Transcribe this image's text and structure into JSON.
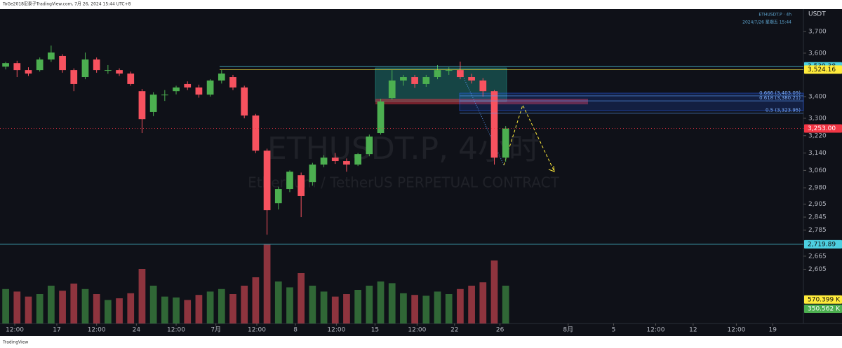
{
  "header": "ToGe2018宏泰子TradingView.com, 7月 26, 2024 15:44 UTC+8",
  "footer_logo": "TradingView",
  "chart_data": {
    "type": "candlestick",
    "title": "ETHUSDT.P, 4小时",
    "subtitle": "Ethereum / TetherUS PERPETUAL CONTRACT",
    "symbol_label": "ETHUSDT.P · 4h",
    "datetime": "2024/7/26 星期五 15:44",
    "axis_unit": "USDT",
    "up_color": "#4caf50",
    "down_color": "#f7525f",
    "x": [
      0.5,
      1.5,
      2.5,
      3.5,
      4.5,
      5.5,
      6.5,
      7.5,
      8.5,
      9.5,
      10.5,
      11.5,
      12.5,
      13.5,
      14.5,
      15.5,
      16.5,
      17.5,
      18.5,
      19.5,
      20.5,
      21.5,
      22.5,
      23.5,
      24.5,
      25.5,
      26.5,
      27.5,
      28.5,
      29.5,
      30.5,
      31.5,
      32.5,
      33.5,
      34.5,
      35.5,
      36.5,
      37.5,
      38.5,
      39.5,
      40.5,
      41.5,
      42.5,
      43.5,
      44.5
    ],
    "open": [
      3538,
      3554,
      3522,
      3522,
      3571,
      3587,
      3522,
      3490,
      3571,
      3522,
      3522,
      3506,
      3425,
      3329,
      3409,
      3425,
      3458,
      3442,
      3409,
      3474,
      3490,
      3442,
      3313,
      3151,
      2909,
      2974,
      3038,
      3006,
      3087,
      3119,
      3103,
      3087,
      3135,
      3232,
      3393,
      3474,
      3490,
      3458,
      3490,
      3522,
      3522,
      3490,
      3474,
      3425,
      3119
    ],
    "high": [
      3560,
      3565,
      3535,
      3580,
      3635,
      3595,
      3530,
      3603,
      3580,
      3545,
      3530,
      3515,
      3435,
      3420,
      3430,
      3450,
      3470,
      3455,
      3480,
      3522,
      3500,
      3450,
      3320,
      3160,
      2985,
      3060,
      3050,
      3095,
      3130,
      3140,
      3115,
      3140,
      3225,
      3390,
      3522,
      3500,
      3500,
      3500,
      3545,
      3535,
      3561,
      3505,
      3485,
      3430,
      3264
    ],
    "low": [
      3525,
      3490,
      3495,
      3515,
      3560,
      3510,
      3425,
      3480,
      3510,
      3505,
      3495,
      3450,
      3232,
      3310,
      3380,
      3410,
      3430,
      3395,
      3400,
      3460,
      3430,
      3300,
      3140,
      2764,
      2880,
      2960,
      2845,
      2990,
      3075,
      3090,
      3054,
      3080,
      3125,
      3225,
      3385,
      3450,
      3440,
      3445,
      3480,
      3500,
      3480,
      3460,
      3400,
      3087,
      3100
    ],
    "close": [
      3554,
      3522,
      3506,
      3571,
      3603,
      3522,
      3458,
      3571,
      3522,
      3522,
      3506,
      3458,
      3296,
      3409,
      3409,
      3442,
      3442,
      3409,
      3474,
      3506,
      3442,
      3313,
      3151,
      2877,
      2974,
      3054,
      2942,
      3087,
      3119,
      3103,
      3087,
      3135,
      3216,
      3377,
      3474,
      3490,
      3458,
      3490,
      3522,
      3522,
      3490,
      3474,
      3425,
      3119,
      3253
    ],
    "volume": {
      "values": [
        820,
        760,
        640,
        700,
        900,
        780,
        950,
        820,
        700,
        560,
        600,
        720,
        1300,
        900,
        640,
        620,
        560,
        680,
        760,
        820,
        700,
        900,
        1100,
        1880,
        1000,
        860,
        1200,
        900,
        760,
        640,
        700,
        800,
        900,
        1000,
        960,
        720,
        680,
        660,
        760,
        700,
        820,
        900,
        980,
        1500,
        900
      ],
      "ylim": [
        0,
        2000
      ]
    },
    "xlim": [
      0,
      70.7
    ],
    "xticks": [
      {
        "value": 1.3,
        "label": "12:00"
      },
      {
        "value": 5,
        "label": "17"
      },
      {
        "value": 8.5,
        "label": "12:00"
      },
      {
        "value": 12,
        "label": "24"
      },
      {
        "value": 15.5,
        "label": "12:00"
      },
      {
        "value": 19,
        "label": "7月"
      },
      {
        "value": 22.6,
        "label": "12:00"
      },
      {
        "value": 26,
        "label": "8"
      },
      {
        "value": 29.6,
        "label": "12:00"
      },
      {
        "value": 33,
        "label": "15"
      },
      {
        "value": 36.7,
        "label": "12:00"
      },
      {
        "value": 40,
        "label": "22"
      },
      {
        "value": 44,
        "label": "26"
      },
      {
        "value": 50,
        "label": "8月"
      },
      {
        "value": 54,
        "label": "5"
      },
      {
        "value": 57.7,
        "label": "12:00"
      },
      {
        "value": 61,
        "label": "12"
      },
      {
        "value": 64.8,
        "label": "12:00"
      },
      {
        "value": 68,
        "label": "19"
      }
    ],
    "ylim": [
      2355,
      3819
    ],
    "yticks": [
      {
        "value": 3700,
        "label": "3,700"
      },
      {
        "value": 3600,
        "label": "3,600"
      },
      {
        "value": 3400,
        "label": "3,400"
      },
      {
        "value": 3300,
        "label": "3,300"
      },
      {
        "value": 3220,
        "label": "3,220"
      },
      {
        "value": 3140,
        "label": "3,140"
      },
      {
        "value": 3060,
        "label": "3,060"
      },
      {
        "value": 2980,
        "label": "2,980"
      },
      {
        "value": 2905,
        "label": "2,905"
      },
      {
        "value": 2845,
        "label": "2,845"
      },
      {
        "value": 2785,
        "label": "2,785"
      },
      {
        "value": 2665,
        "label": "2,665"
      },
      {
        "value": 2605,
        "label": "2,605"
      }
    ],
    "price_tags": [
      {
        "value": 3539.38,
        "label": "3,539.38",
        "color": "#4dd0e1"
      },
      {
        "value": 3524.16,
        "label": "3,524.16",
        "color": "#ffeb3b"
      },
      {
        "value": 3253.0,
        "label": "3,253.00",
        "color": "#f23645"
      },
      {
        "value": 2719.89,
        "label": "2,719.89",
        "color": "#4dd0e1"
      }
    ],
    "fib_levels": [
      {
        "value": 3403.09,
        "label": "0.666 (3,403.09)"
      },
      {
        "value": 3380.21,
        "label": "0.618 (3,380.21)"
      },
      {
        "value": 3323.95,
        "label": "0.5 (3,323.95)"
      }
    ],
    "volume_tags": [
      {
        "value": 570.399,
        "label": "570.399 K",
        "color": "#ffeb3b"
      },
      {
        "value": 350.562,
        "label": "350.562 K",
        "color": "#4caf50"
      }
    ]
  }
}
